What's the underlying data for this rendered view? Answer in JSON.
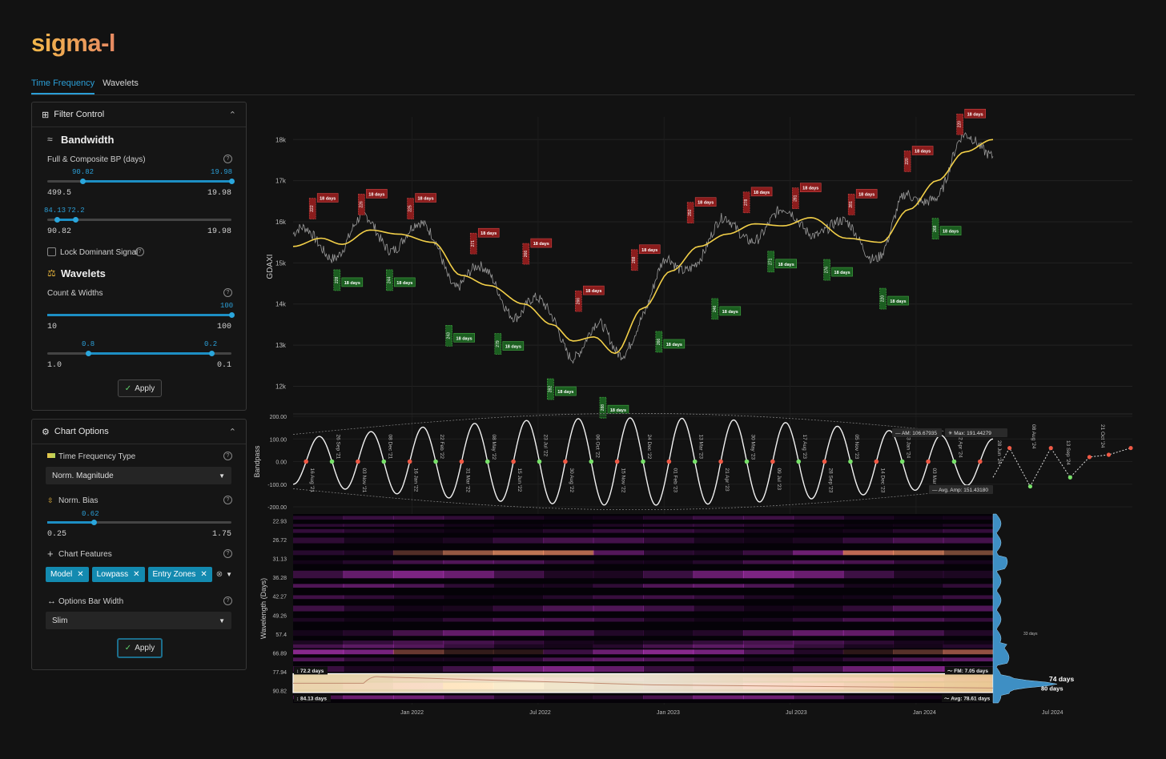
{
  "app": {
    "logo": "sigma-l"
  },
  "tabs": [
    {
      "label": "Time Frequency",
      "active": true
    },
    {
      "label": "Wavelets",
      "active": false
    }
  ],
  "filter_panel": {
    "title": "Filter Control",
    "bandwidth": {
      "heading": "Bandwidth",
      "label": "Full & Composite BP (days)",
      "slider1": {
        "low_value": "90.82",
        "high_value": "19.98",
        "min": "499.5",
        "max": "19.98",
        "low_fraction": 0.19,
        "high_fraction": 1.0
      },
      "slider2": {
        "low_value": "84.13",
        "high_value": "72.2",
        "min": "90.82",
        "max": "19.98",
        "low_fraction": 0.05,
        "high_fraction": 0.15
      }
    },
    "lock_label": "Lock Dominant Signal",
    "wavelets": {
      "heading": "Wavelets",
      "label": "Count & Widths",
      "slider1": {
        "value": "100",
        "min": "10",
        "max": "100",
        "fraction": 1.0
      },
      "slider2": {
        "low_value": "0.8",
        "high_value": "0.2",
        "min": "1.0",
        "max": "0.1",
        "low_fraction": 0.22,
        "high_fraction": 0.89
      }
    },
    "apply": "Apply"
  },
  "chart_options": {
    "title": "Chart Options",
    "tf_type_label": "Time Frequency Type",
    "tf_type_value": "Norm. Magnitude",
    "bias_label": "Norm. Bias",
    "bias": {
      "value": "0.62",
      "min": "0.25",
      "max": "1.75",
      "fraction": 0.25
    },
    "features_label": "Chart Features",
    "features": [
      "Model",
      "Lowpass",
      "Entry Zones"
    ],
    "bar_width_label": "Options Bar Width",
    "bar_width_value": "Slim",
    "apply": "Apply"
  },
  "price_chart": {
    "ylabel": "GDAXI",
    "y_ticks": [
      "18k",
      "17k",
      "16k",
      "15k",
      "14k",
      "13k",
      "12k"
    ],
    "zone_label": "18 days",
    "peaks": [
      {
        "t": 0.03,
        "p": 15950,
        "tag": "222"
      },
      {
        "t": 0.1,
        "p": 16050,
        "tag": "226"
      },
      {
        "t": 0.17,
        "p": 15950,
        "tag": "225"
      },
      {
        "t": 0.26,
        "p": 15100,
        "tag": "271"
      },
      {
        "t": 0.335,
        "p": 14850,
        "tag": "266"
      },
      {
        "t": 0.41,
        "p": 13700,
        "tag": "266"
      },
      {
        "t": 0.49,
        "p": 14700,
        "tag": "288"
      },
      {
        "t": 0.57,
        "p": 15850,
        "tag": "292"
      },
      {
        "t": 0.65,
        "p": 16100,
        "tag": "278"
      },
      {
        "t": 0.72,
        "p": 16200,
        "tag": "281"
      },
      {
        "t": 0.8,
        "p": 16050,
        "tag": "281"
      },
      {
        "t": 0.88,
        "p": 17100,
        "tag": "220"
      },
      {
        "t": 0.955,
        "p": 18000,
        "tag": "220"
      }
    ],
    "troughs": [
      {
        "t": 0.065,
        "p": 14950,
        "tag": "228"
      },
      {
        "t": 0.14,
        "p": 14950,
        "tag": "244"
      },
      {
        "t": 0.225,
        "p": 13600,
        "tag": "243"
      },
      {
        "t": 0.295,
        "p": 13400,
        "tag": "279"
      },
      {
        "t": 0.37,
        "p": 12300,
        "tag": "282"
      },
      {
        "t": 0.445,
        "p": 11850,
        "tag": "288"
      },
      {
        "t": 0.525,
        "p": 13450,
        "tag": "266"
      },
      {
        "t": 0.605,
        "p": 14250,
        "tag": "246"
      },
      {
        "t": 0.685,
        "p": 15400,
        "tag": "271"
      },
      {
        "t": 0.765,
        "p": 15200,
        "tag": "276"
      },
      {
        "t": 0.845,
        "p": 14500,
        "tag": "220"
      },
      {
        "t": 0.92,
        "p": 16200,
        "tag": "268"
      }
    ]
  },
  "bandpass": {
    "ylabel": "Bandpass",
    "y_ticks": [
      "200.00",
      "100.00",
      "0.00",
      "-100.00",
      "-200.00"
    ],
    "date_labels": [
      "16 Aug '21",
      "26 Sep '21",
      "03 Nov '21",
      "08 Dec '21",
      "16 Jan '22",
      "22 Feb '22",
      "31 Mar '22",
      "08 May '22",
      "15 Jun '22",
      "23 Jul '22",
      "30 Aug '22",
      "06 Oct '22",
      "15 Nov '22",
      "24 Dec '22",
      "01 Feb '23",
      "13 Mar '23",
      "21 Apr '23",
      "30 May '23",
      "09 Jul '23",
      "17 Aug '23",
      "28 Sep '23",
      "05 Nov '23",
      "14 Dec '23",
      "23 Jan '24",
      "03 Mar '24",
      "12 Apr '24",
      "21 May '24",
      "28 Jun '24",
      "08 Aug '24",
      "13 Sep '24",
      "21 Oct '24"
    ],
    "am": "AM: 106.67935",
    "max": "Max: 191.44279",
    "avg": "Avg. Amp: 151.43180"
  },
  "spectrogram": {
    "ylabel": "Wavelength (Days)",
    "y_ticks": [
      "22.93",
      "26.72",
      "31.13",
      "36.28",
      "42.27",
      "49.26",
      "57.4",
      "66.89",
      "77.94",
      "90.82"
    ],
    "x_ticks": [
      "Jan 2022",
      "Jul 2022",
      "Jan 2023",
      "Jul 2023",
      "Jan 2024",
      "Jul 2024"
    ],
    "band_top": "72.2 days",
    "band_bottom": "84.13 days",
    "fm": "FM: 7.05 days",
    "avg": "Avg: 78.61 days",
    "peak_small": "33 days",
    "peak_74": "74 days",
    "peak_80": "80 days"
  },
  "colors": {
    "accent": "#2b9ed6",
    "peak": "#8b1c1c",
    "trough": "#1b5e20",
    "lowpass": "#f2cf48",
    "bp_peak": "#f05a46",
    "bp_trough": "#78e26a"
  }
}
